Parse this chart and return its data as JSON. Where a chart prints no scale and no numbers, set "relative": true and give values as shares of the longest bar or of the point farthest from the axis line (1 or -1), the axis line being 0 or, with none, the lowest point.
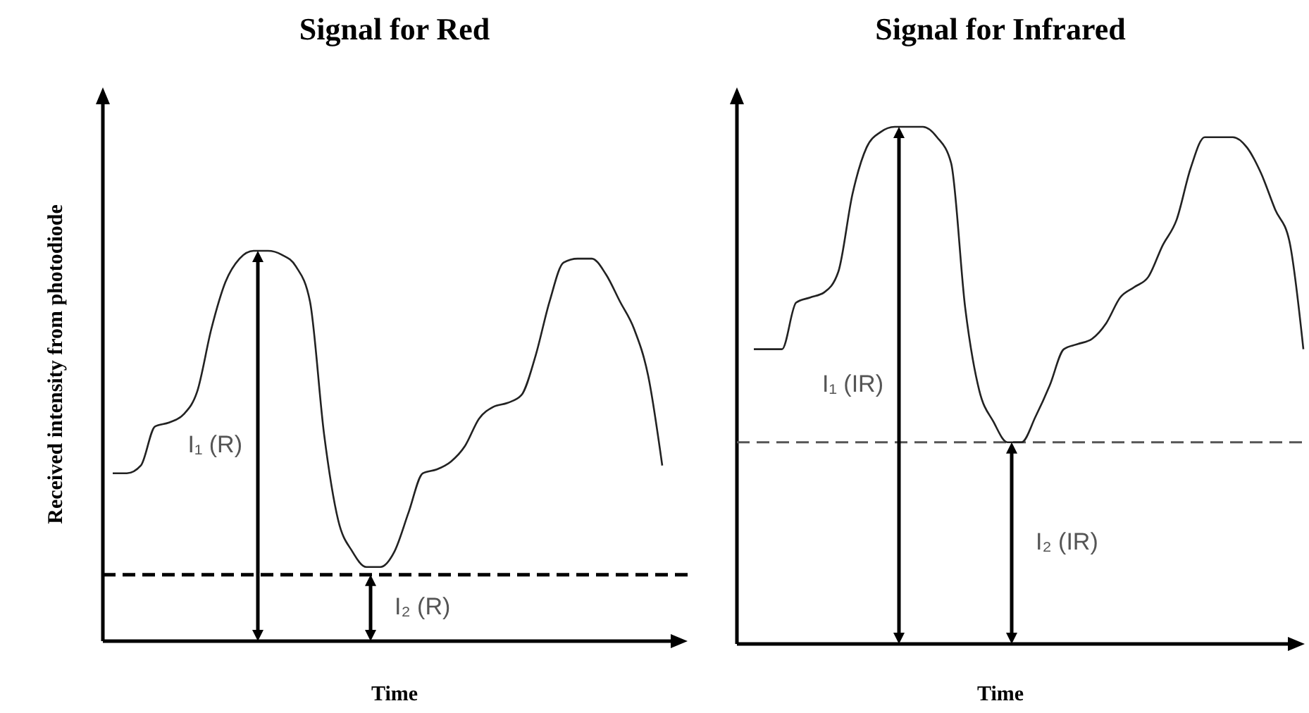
{
  "chart_data": [
    {
      "type": "line",
      "title": "Signal for Red",
      "xlabel": "Time",
      "ylabel": "Received intensity from photodiode",
      "relative": true,
      "categories": [
        null,
        null,
        null,
        null,
        null,
        null,
        null,
        null,
        null,
        null,
        null,
        null,
        null,
        null,
        null,
        null,
        null,
        null,
        null,
        null,
        null,
        null,
        null,
        null,
        null,
        null,
        null,
        null,
        null,
        null,
        null,
        null,
        null,
        null,
        null,
        null,
        null,
        null,
        null,
        null
      ],
      "series": [
        {
          "color": "#222222",
          "values": [
            0.43,
            0.43,
            0.45,
            0.55,
            0.56,
            0.58,
            0.64,
            0.8,
            0.92,
            0.98,
            1,
            1,
            0.99,
            0.96,
            0.87,
            0.53,
            0.31,
            0.23,
            0.19,
            0.19,
            0.23,
            0.33,
            0.43,
            0.44,
            0.46,
            0.5,
            0.57,
            0.6,
            0.61,
            0.63,
            0.73,
            0.87,
            0.97,
            0.98,
            0.98,
            0.94,
            0.87,
            0.8,
            0.68,
            0.45
          ]
        }
      ],
      "ref_lines": [
        {
          "axis": "y",
          "value": 0.17,
          "color": "#000000",
          "line_style": "dashed"
        }
      ],
      "annotations": [
        "I₁ (R)",
        "I₂ (R)"
      ]
    },
    {
      "type": "line",
      "title": "Signal for Infrared",
      "xlabel": "Time",
      "relative": true,
      "categories": [
        null,
        null,
        null,
        null,
        null,
        null,
        null,
        null,
        null,
        null,
        null,
        null,
        null,
        null,
        null,
        null,
        null,
        null,
        null,
        null,
        null,
        null,
        null,
        null,
        null,
        null,
        null,
        null,
        null,
        null,
        null,
        null,
        null,
        null,
        null,
        null,
        null,
        null,
        null,
        null
      ],
      "series": [
        {
          "color": "#222222",
          "values": [
            0.57,
            0.57,
            0.57,
            0.66,
            0.67,
            0.68,
            0.72,
            0.87,
            0.96,
            0.99,
            1,
            1,
            1,
            0.98,
            0.93,
            0.65,
            0.49,
            0.43,
            0.39,
            0.39,
            0.44,
            0.5,
            0.57,
            0.58,
            0.59,
            0.62,
            0.67,
            0.69,
            0.71,
            0.77,
            0.82,
            0.92,
            0.98,
            0.98,
            0.98,
            0.96,
            0.91,
            0.84,
            0.78,
            0.57
          ]
        }
      ],
      "ref_lines": [
        {
          "axis": "y",
          "value": 0.39,
          "color": "#555555",
          "line_style": "dashed"
        }
      ],
      "annotations": [
        "I₁ (IR)",
        "I₂ (IR)"
      ]
    }
  ]
}
